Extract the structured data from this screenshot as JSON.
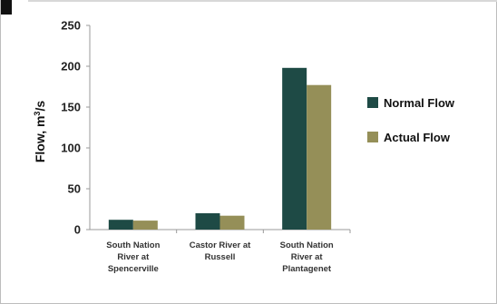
{
  "chart_data": {
    "type": "bar",
    "categories": [
      [
        "South Nation",
        "River at",
        "Spencerville"
      ],
      [
        "Castor River at",
        "Russell"
      ],
      [
        "South Nation",
        "River at",
        "Plantagenet"
      ]
    ],
    "series": [
      {
        "name": "Normal Flow",
        "color": "#1e4a45",
        "values": [
          12,
          20,
          198
        ]
      },
      {
        "name": "Actual Flow",
        "color": "#958f58",
        "values": [
          11,
          17,
          177
        ]
      }
    ],
    "ylabel_main": "Flow, m",
    "ylabel_sup": "3",
    "ylabel_tail": "/s",
    "ylim": [
      0,
      250
    ],
    "yticks": [
      "0",
      "50",
      "100",
      "150",
      "200",
      "250"
    ],
    "legend_position": "right",
    "grid": false
  }
}
